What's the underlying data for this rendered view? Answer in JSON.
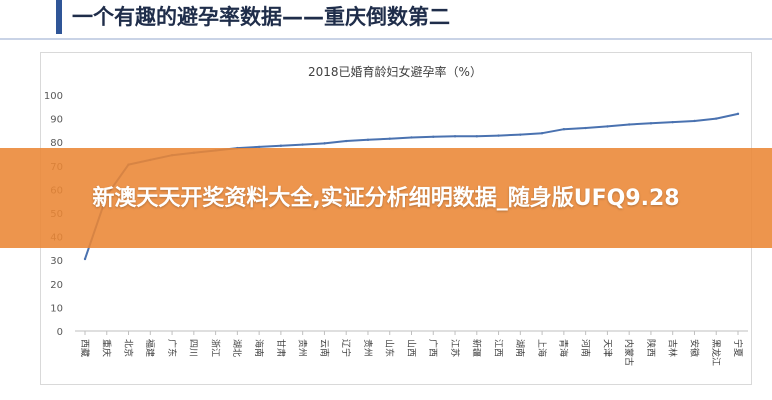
{
  "header": {
    "title": "一个有趣的避孕率数据——重庆倒数第二"
  },
  "banner": {
    "text": "新澳天天开奖资料大全,实证分析细明数据_随身版UFQ9.28"
  },
  "colors": {
    "line": "#4a72b0",
    "banner": "#ea8634",
    "accent": "#2f5597"
  },
  "chart_data": {
    "type": "line",
    "title": "2018已婚育龄妇女避孕率（%）",
    "xlabel": "",
    "ylabel": "",
    "ylim": [
      0,
      100
    ],
    "yticks": [
      0,
      10,
      20,
      30,
      40,
      50,
      60,
      70,
      80,
      90,
      100
    ],
    "grid": false,
    "categories": [
      "西藏",
      "重庆",
      "北京",
      "福建",
      "广东",
      "四川",
      "浙江",
      "湖北",
      "海南",
      "甘肃",
      "贵州",
      "云南",
      "辽宁",
      "贵州",
      "山东",
      "山西",
      "广西",
      "江苏",
      "新疆",
      "江西",
      "湖南",
      "上海",
      "青海",
      "河南",
      "天津",
      "内蒙古",
      "陕西",
      "吉林",
      "安徽",
      "黑龙江",
      "宁夏"
    ],
    "series": [
      {
        "values": [
          30.5,
          57.5,
          70.5,
          72.5,
          74.5,
          75.5,
          76.5,
          77.5,
          78,
          78.5,
          79,
          79.5,
          80.5,
          81,
          81.5,
          82,
          82.3,
          82.5,
          82.5,
          82.8,
          83.2,
          83.8,
          85.5,
          86,
          86.7,
          87.5,
          88,
          88.5,
          89,
          90,
          92
        ]
      }
    ]
  }
}
